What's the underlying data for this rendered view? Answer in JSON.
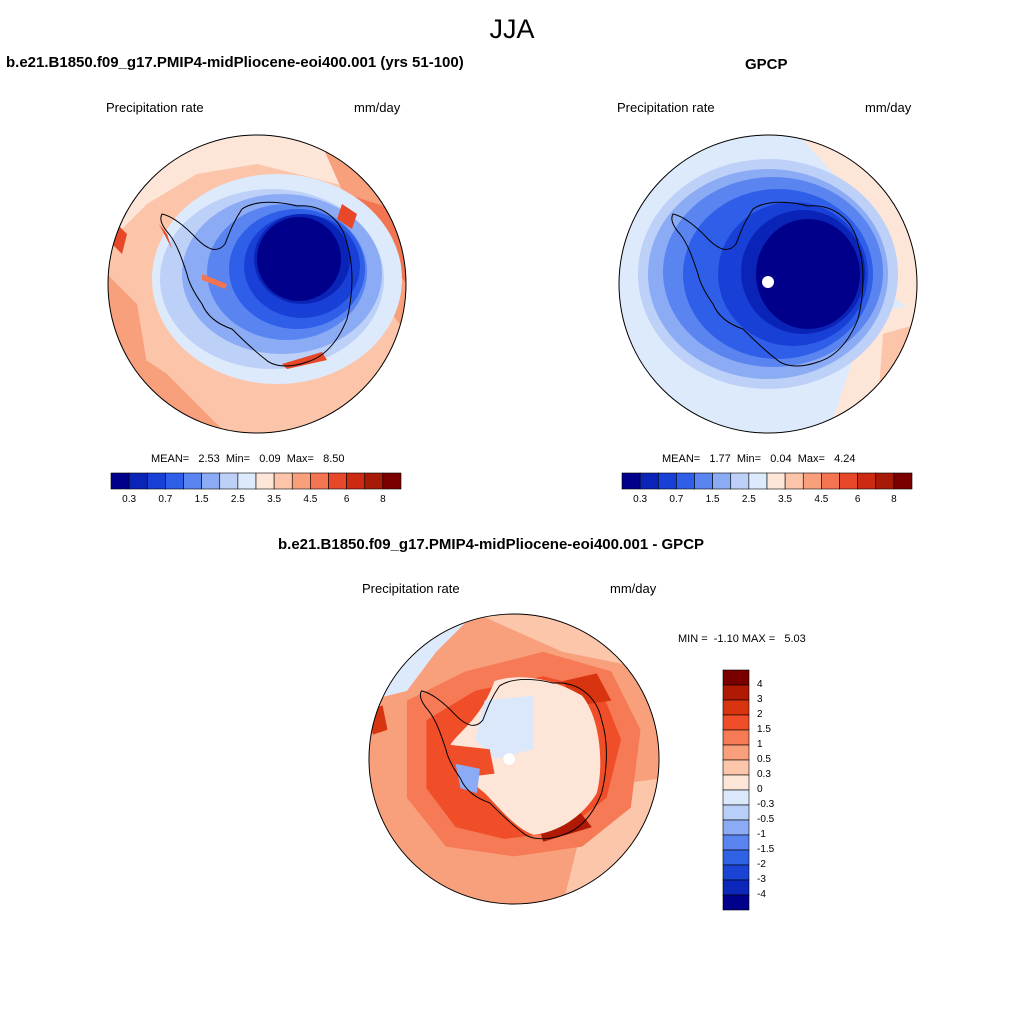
{
  "figure": {
    "season": "JJA",
    "left_panel": {
      "title": "b.e21.B1850.f09_g17.PMIP4-midPliocene-eoi400.001 (yrs 51-100)",
      "variable": "Precipitation rate",
      "units": "mm/day",
      "stats": "MEAN=   2.53  Min=   0.09  Max=   8.50"
    },
    "right_panel": {
      "title": "GPCP",
      "variable": "Precipitation rate",
      "units": "mm/day",
      "stats": "MEAN=   1.77  Min=   0.04  Max=   4.24"
    },
    "diff_panel": {
      "title": "b.e21.B1850.f09_g17.PMIP4-midPliocene-eoi400.001 - GPCP",
      "variable": "Precipitation rate",
      "units": "mm/day",
      "stats": "MIN =  -1.10 MAX =   5.03"
    }
  },
  "chart_data": [
    {
      "type": "heatmap",
      "projection": "south polar stereographic",
      "title": "b.e21.B1850.f09_g17.PMIP4-midPliocene-eoi400.001 (yrs 51-100)",
      "variable": "Precipitation rate",
      "units": "mm/day",
      "mean": 2.53,
      "min": 0.09,
      "max": 8.5,
      "colorbar_levels": [
        "0.3",
        "0.7",
        "1.5",
        "2.5",
        "3.5",
        "4.5",
        "6",
        "8"
      ],
      "colorbar_colors": [
        "#00008b",
        "#0b24b8",
        "#1940d6",
        "#2f5fe8",
        "#5a84f0",
        "#8cabf5",
        "#bcd0f8",
        "#ddeafc",
        "#fde5d8",
        "#fcc4a8",
        "#f8a07c",
        "#f27450",
        "#e8482a",
        "#cc2a12",
        "#a81a08",
        "#7a0000"
      ]
    },
    {
      "type": "heatmap",
      "projection": "south polar stereographic",
      "title": "GPCP",
      "variable": "Precipitation rate",
      "units": "mm/day",
      "mean": 1.77,
      "min": 0.04,
      "max": 4.24,
      "colorbar_levels": [
        "0.3",
        "0.7",
        "1.5",
        "2.5",
        "3.5",
        "4.5",
        "6",
        "8"
      ],
      "colorbar_colors": [
        "#00008b",
        "#0b24b8",
        "#1940d6",
        "#2f5fe8",
        "#5a84f0",
        "#8cabf5",
        "#bcd0f8",
        "#ddeafc",
        "#fde5d8",
        "#fcc4a8",
        "#f8a07c",
        "#f27450",
        "#e8482a",
        "#cc2a12",
        "#a81a08",
        "#7a0000"
      ]
    },
    {
      "type": "heatmap",
      "projection": "south polar stereographic",
      "title": "b.e21.B1850.f09_g17.PMIP4-midPliocene-eoi400.001 - GPCP",
      "variable": "Precipitation rate",
      "units": "mm/day",
      "min": -1.1,
      "max": 5.03,
      "colorbar_levels": [
        "4",
        "3",
        "2",
        "1.5",
        "1",
        "0.5",
        "0.3",
        "0",
        "-0.3",
        "-0.5",
        "-1",
        "-1.5",
        "-2",
        "-3",
        "-4"
      ],
      "colorbar_colors": [
        "#7a0000",
        "#b01a05",
        "#d8340f",
        "#f04e28",
        "#f57a55",
        "#f99f7c",
        "#fcc6aa",
        "#fde6d8",
        "#dbe8fb",
        "#b8cff7",
        "#8cabf5",
        "#5a84f0",
        "#3062e6",
        "#1b44d6",
        "#0b26b8",
        "#00008b"
      ]
    }
  ]
}
